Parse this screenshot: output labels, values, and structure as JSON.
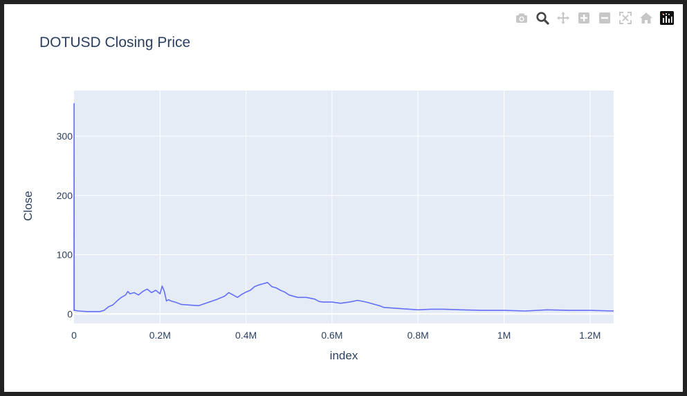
{
  "modebar": {
    "buttons": [
      {
        "name": "camera-icon"
      },
      {
        "name": "zoom-icon"
      },
      {
        "name": "pan-icon"
      },
      {
        "name": "zoom-in-icon"
      },
      {
        "name": "zoom-out-icon"
      },
      {
        "name": "autoscale-icon"
      },
      {
        "name": "reset-axes-icon"
      },
      {
        "name": "plotly-logo-icon"
      }
    ]
  },
  "chart_data": {
    "type": "line",
    "title": "DOTUSD Closing Price",
    "xlabel": "index",
    "ylabel": "Close",
    "xlim": [
      0,
      1255000
    ],
    "ylim": [
      -16,
      377
    ],
    "xticks": [
      0,
      200000,
      400000,
      600000,
      800000,
      1000000,
      1200000
    ],
    "xtick_labels": [
      "0",
      "0.2M",
      "0.4M",
      "0.6M",
      "0.8M",
      "1M",
      "1.2M"
    ],
    "yticks": [
      0,
      100,
      200,
      300
    ],
    "ytick_labels": [
      "0",
      "100",
      "200",
      "300"
    ],
    "grid": true,
    "line_color": "#636efa",
    "plot_bg": "#e5ecf6",
    "series": [
      {
        "x": [
          0,
          200,
          500,
          2000,
          10000,
          30000,
          60000,
          70000,
          80000,
          90000,
          100000,
          110000,
          120000,
          125000,
          130000,
          140000,
          150000,
          160000,
          170000,
          180000,
          190000,
          200000,
          205000,
          210000,
          215000,
          220000,
          225000,
          235000,
          250000,
          270000,
          290000,
          310000,
          330000,
          350000,
          360000,
          370000,
          380000,
          390000,
          400000,
          410000,
          420000,
          430000,
          440000,
          450000,
          460000,
          470000,
          480000,
          490000,
          500000,
          520000,
          540000,
          560000,
          570000,
          580000,
          600000,
          620000,
          640000,
          660000,
          680000,
          700000,
          710000,
          720000,
          740000,
          760000,
          780000,
          800000,
          830000,
          860000,
          900000,
          950000,
          1000000,
          1050000,
          1100000,
          1150000,
          1200000,
          1255000
        ],
        "y": [
          5,
          355,
          8,
          6,
          5,
          4,
          4,
          6,
          12,
          15,
          22,
          28,
          32,
          38,
          34,
          36,
          32,
          38,
          42,
          36,
          40,
          34,
          47,
          38,
          22,
          24,
          22,
          20,
          16,
          15,
          14,
          19,
          24,
          30,
          36,
          32,
          28,
          33,
          37,
          40,
          46,
          49,
          51,
          53,
          46,
          44,
          40,
          37,
          32,
          28,
          28,
          25,
          21,
          20,
          20,
          18,
          20,
          23,
          20,
          16,
          14,
          11,
          10,
          9,
          8,
          7,
          8,
          8,
          7,
          6,
          6,
          5,
          7,
          6,
          6,
          5
        ]
      }
    ]
  }
}
